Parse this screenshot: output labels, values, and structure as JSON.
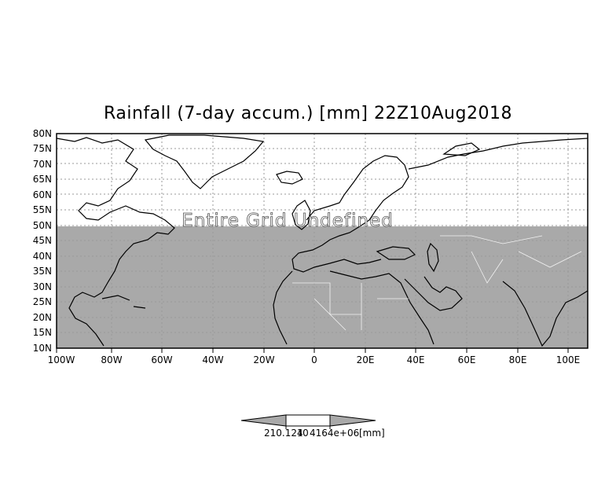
{
  "title": "Rainfall (7-day accum.) [mm] 22Z10Aug2018",
  "overlay_message": "Entire Grid Undefined",
  "lat_labels": [
    "80N",
    "75N",
    "70N",
    "65N",
    "60N",
    "55N",
    "50N",
    "45N",
    "40N",
    "35N",
    "30N",
    "25N",
    "20N",
    "15N",
    "10N"
  ],
  "lon_labels": [
    "100W",
    "80W",
    "60W",
    "40W",
    "20W",
    "0",
    "20E",
    "40E",
    "60E",
    "80E",
    "100E"
  ],
  "colorbar": {
    "labels": [
      "210.124",
      "4164e+06",
      "[mm]"
    ],
    "overlap_text": "10"
  },
  "colors": {
    "land_fill": "#a9a9a9",
    "grid": "#999999",
    "coast": "#000000"
  }
}
